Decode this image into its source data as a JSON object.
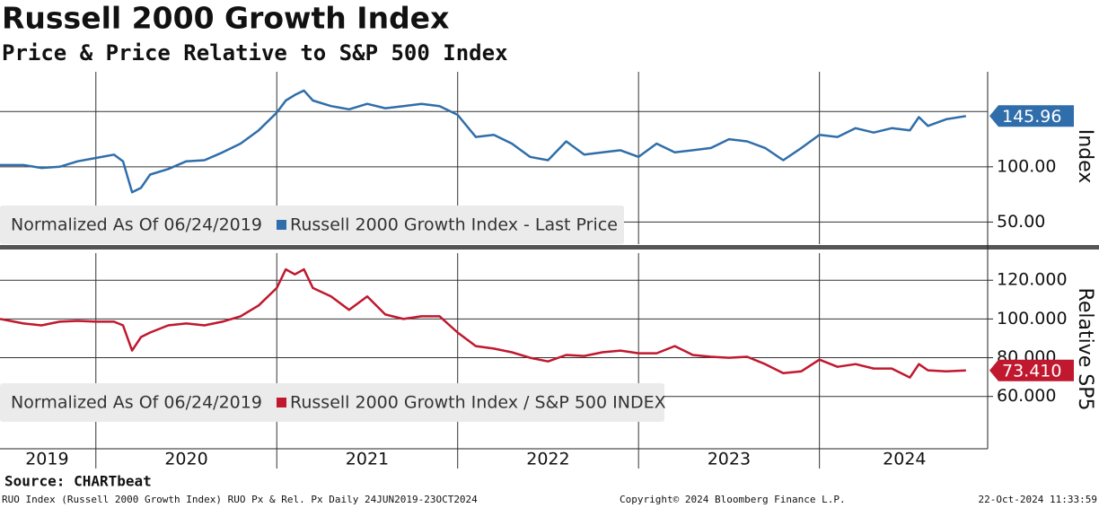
{
  "header": {
    "title": "Russell 2000 Growth Index",
    "subtitle": "Price & Price Relative to S&P 500 Index"
  },
  "footer": {
    "source": "Source: CHARTbeat",
    "description": "RUO Index (Russell 2000 Growth Index) RUO Px & Rel. Px  Daily 24JUN2019-23OCT2024",
    "copyright": "Copyright© 2024 Bloomberg Finance L.P.",
    "timestamp": "22-Oct-2024 11:33:59"
  },
  "chart_data": [
    {
      "type": "line",
      "y_label": "Index",
      "legend_note": "Normalized As Of 06/24/2019",
      "x": [
        2019.47,
        2019.6,
        2019.7,
        2019.8,
        2019.9,
        2020.0,
        2020.1,
        2020.15,
        2020.2,
        2020.25,
        2020.3,
        2020.4,
        2020.5,
        2020.6,
        2020.7,
        2020.8,
        2020.9,
        2021.0,
        2021.05,
        2021.1,
        2021.15,
        2021.2,
        2021.3,
        2021.4,
        2021.5,
        2021.6,
        2021.7,
        2021.8,
        2021.9,
        2022.0,
        2022.1,
        2022.2,
        2022.3,
        2022.4,
        2022.5,
        2022.6,
        2022.7,
        2022.8,
        2022.9,
        2023.0,
        2023.1,
        2023.2,
        2023.3,
        2023.4,
        2023.5,
        2023.6,
        2023.7,
        2023.8,
        2023.9,
        2024.0,
        2024.1,
        2024.2,
        2024.3,
        2024.4,
        2024.5,
        2024.55,
        2024.6,
        2024.7,
        2024.81
      ],
      "series": [
        {
          "name": "Russell 2000 Growth Index - Last Price",
          "color": "#2f6eaa",
          "last_value_label": "145.96",
          "values": [
            101.6,
            101.6,
            99,
            100,
            105,
            108,
            111,
            105,
            77,
            81,
            93,
            98,
            105,
            106,
            113,
            121,
            133,
            149,
            160,
            165,
            169,
            160,
            155,
            152,
            157,
            153,
            155,
            157,
            155,
            147,
            127,
            129,
            121,
            109,
            106,
            123,
            111,
            113,
            115,
            109,
            121,
            113,
            115,
            117,
            125,
            123,
            117,
            106,
            117,
            129,
            127,
            135,
            131,
            135,
            133,
            145,
            137,
            143,
            145.96
          ]
        }
      ],
      "xlim": [
        2019.47,
        2024.93
      ],
      "ylim": [
        30,
        186
      ],
      "yticks": [
        {
          "value": 50,
          "label": "50.00"
        },
        {
          "value": 100,
          "label": "100.00"
        }
      ],
      "ygrid": [
        50,
        100,
        150
      ],
      "xgrid": [
        2020,
        2021,
        2022,
        2023,
        2024
      ]
    },
    {
      "type": "line",
      "y_label": "Relative SP5",
      "legend_note": "Normalized As Of 06/24/2019",
      "x": [
        2019.47,
        2019.6,
        2019.7,
        2019.8,
        2019.9,
        2020.0,
        2020.1,
        2020.15,
        2020.2,
        2020.25,
        2020.3,
        2020.4,
        2020.5,
        2020.6,
        2020.7,
        2020.8,
        2020.9,
        2021.0,
        2021.05,
        2021.1,
        2021.15,
        2021.2,
        2021.3,
        2021.4,
        2021.5,
        2021.6,
        2021.7,
        2021.8,
        2021.9,
        2022.0,
        2022.1,
        2022.2,
        2022.3,
        2022.4,
        2022.5,
        2022.6,
        2022.7,
        2022.8,
        2022.9,
        2023.0,
        2023.1,
        2023.2,
        2023.3,
        2023.4,
        2023.5,
        2023.6,
        2023.7,
        2023.8,
        2023.9,
        2024.0,
        2024.1,
        2024.2,
        2024.3,
        2024.4,
        2024.5,
        2024.55,
        2024.6,
        2024.7,
        2024.81
      ],
      "series": [
        {
          "name": "Russell 2000 Growth Index / S&P 500 INDEX",
          "color": "#c0182e",
          "last_value_label": "73.410",
          "values": [
            100,
            97.7,
            96.7,
            98.6,
            99,
            98.6,
            98.6,
            96.7,
            83.7,
            90.7,
            93,
            96.7,
            97.7,
            96.7,
            98.6,
            101.4,
            107,
            116,
            125.6,
            123,
            125.6,
            116,
            111.6,
            104.7,
            111.6,
            102.3,
            100,
            101.4,
            101.4,
            93,
            86,
            84.7,
            82.8,
            80,
            78.1,
            81.4,
            80.9,
            82.8,
            83.7,
            82.3,
            82.3,
            86,
            81.4,
            80.5,
            80,
            80.5,
            76.7,
            72,
            73,
            79,
            75.3,
            76.7,
            74.4,
            74.4,
            69.8,
            76.7,
            73.5,
            73,
            73.41
          ]
        }
      ],
      "xlim": [
        2019.47,
        2024.93
      ],
      "ylim": [
        33,
        134
      ],
      "yticks": [
        {
          "value": 60,
          "label": "60.000"
        },
        {
          "value": 80,
          "label": "80.000"
        },
        {
          "value": 100,
          "label": "100.000"
        },
        {
          "value": 120,
          "label": "120.000"
        }
      ],
      "xticks": [
        {
          "value": 2019.73,
          "label": "2019"
        },
        {
          "value": 2020.5,
          "label": "2020"
        },
        {
          "value": 2021.5,
          "label": "2021"
        },
        {
          "value": 2022.5,
          "label": "2022"
        },
        {
          "value": 2023.5,
          "label": "2023"
        },
        {
          "value": 2024.47,
          "label": "2024"
        }
      ],
      "xgrid": [
        2020,
        2021,
        2022,
        2023,
        2024
      ]
    }
  ]
}
